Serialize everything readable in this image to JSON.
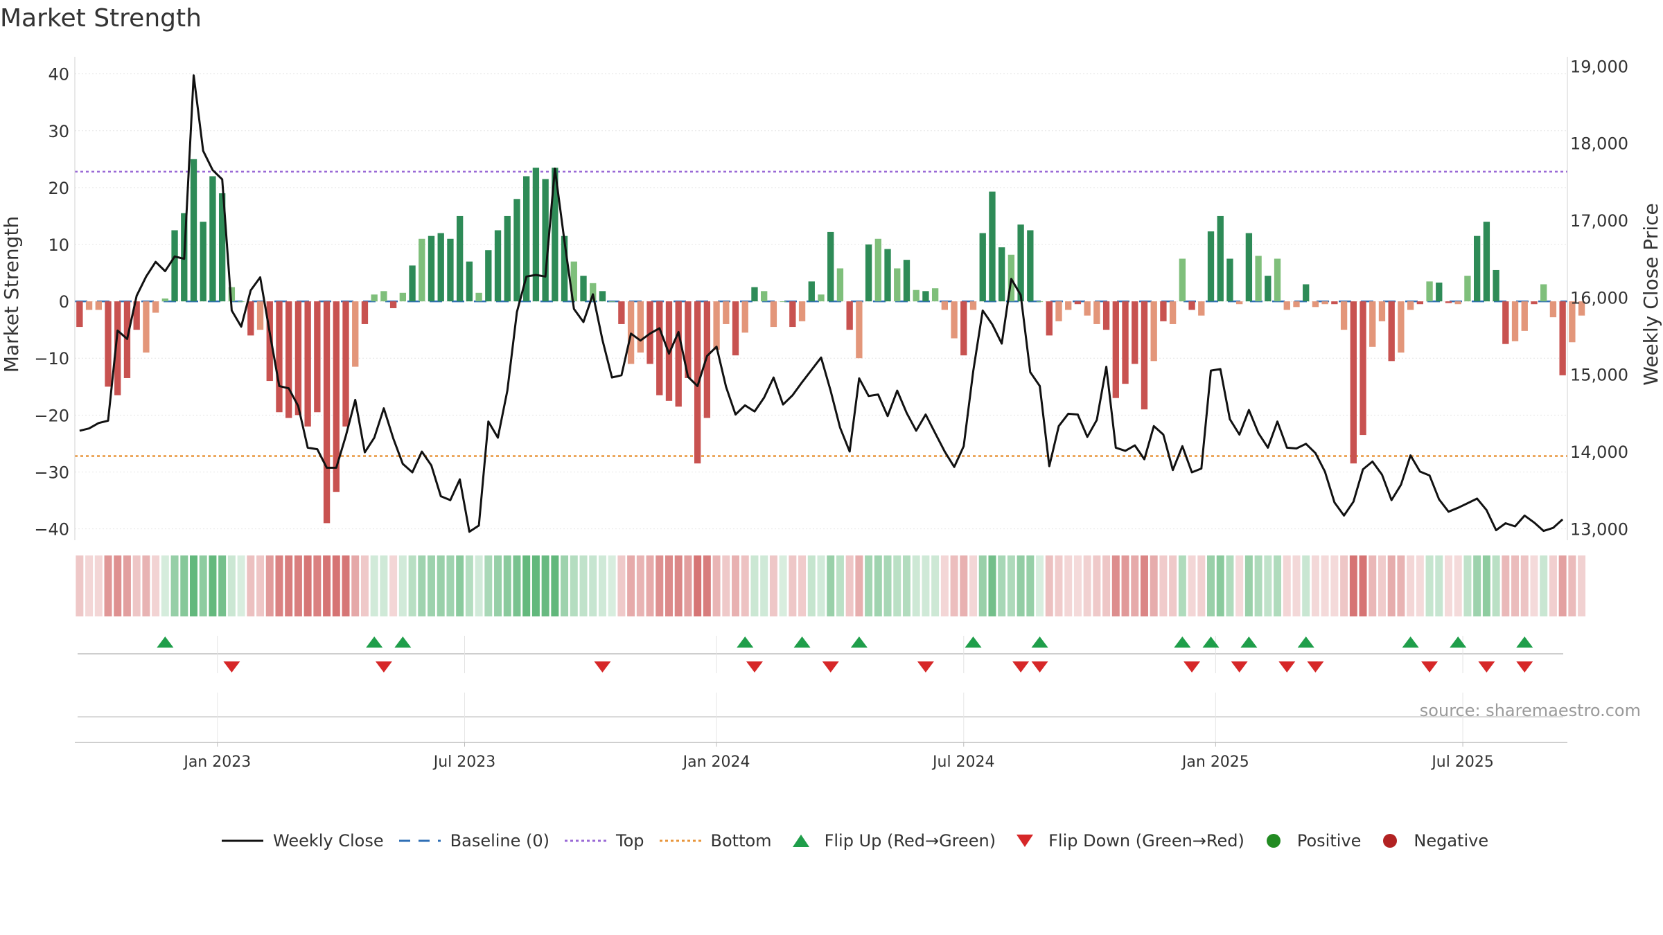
{
  "title": "Market Strength",
  "source": "source: sharemaestro.com",
  "colors": {
    "strong_green": "#2e8b57",
    "light_green": "#7fbf7b",
    "strong_red": "#c85250",
    "light_red": "#e3967a",
    "close_line": "#111111",
    "top_line": "#9a6ad6",
    "bottom_line": "#e8963c",
    "baseline": "#2f6fb5",
    "flip_up": "#1f9e4a",
    "flip_down": "#d62728",
    "positive": "#228b22",
    "negative": "#b22222"
  },
  "chart_data": {
    "type": "bar",
    "title": "Market Strength",
    "ylabel_left": "Market Strength",
    "ylabel_right": "Weekly Close Price",
    "left_ticks": [
      40,
      30,
      20,
      10,
      0,
      -10,
      -20,
      -30,
      -40
    ],
    "left_tick_labels": [
      "40",
      "30",
      "20",
      "10",
      "0",
      "−10",
      "−20",
      "−30",
      "−40"
    ],
    "right_ticks": [
      19000,
      18000,
      17000,
      16000,
      15000,
      14000,
      13000
    ],
    "right_tick_labels": [
      "19,000",
      "18,000",
      "17,000",
      "16,000",
      "15,000",
      "14,000",
      "13,000"
    ],
    "ylim_left": [
      -42,
      43
    ],
    "ylim_right": [
      12850,
      19120
    ],
    "x_ticks": [
      {
        "label": "Jan 2023",
        "week": 15
      },
      {
        "label": "Jul 2023",
        "week": 41
      },
      {
        "label": "Jan 2024",
        "week": 67.5
      },
      {
        "label": "Jul 2024",
        "week": 93.5
      },
      {
        "label": "Jan 2025",
        "week": 120
      },
      {
        "label": "Jul 2025",
        "week": 146
      }
    ],
    "weeks": 157,
    "top": 22.8,
    "bottom": -27.2,
    "strength": [
      -4.5,
      -1.5,
      -1.5,
      -15,
      -16.5,
      -13.5,
      -5,
      -9,
      -2,
      0.5,
      12.5,
      15.5,
      25,
      14,
      22,
      19,
      2.5,
      0,
      -6,
      -5,
      -14,
      -19.5,
      -20.5,
      -20,
      -22,
      -19.5,
      -39,
      -33.5,
      -22,
      -11.5,
      -4,
      1.2,
      1.8,
      -1.2,
      1.5,
      6.3,
      11,
      11.5,
      12,
      11,
      15,
      7,
      1.5,
      9,
      12.5,
      15,
      18,
      22,
      23.5,
      21.5,
      23.5,
      11.5,
      7,
      4.5,
      3.2,
      1.8,
      0,
      -4,
      -11,
      -9,
      -11,
      -16.5,
      -17.5,
      -18.5,
      -13.5,
      -28.5,
      -20.5,
      -8.5,
      -4,
      -9.5,
      -5.5,
      2.5,
      1.8,
      -4.5,
      0,
      -4.5,
      -3.5,
      3.5,
      1.2,
      12.2,
      5.8,
      -5,
      -10,
      10,
      11,
      9.2,
      5.8,
      7.3,
      2,
      1.8,
      2.3,
      -1.5,
      -6.5,
      -9.5,
      -1.5,
      12,
      19.3,
      9.5,
      8.2,
      13.5,
      12.5,
      0,
      -6,
      -3.5,
      -1.5,
      -0.5,
      -2.5,
      -4,
      -5,
      -17,
      -14.5,
      -11,
      -19,
      -10.5,
      -3.5,
      -4,
      7.5,
      -1.5,
      -2.5,
      12.3,
      15,
      7.5,
      -0.5,
      12,
      8,
      4.5,
      7.5,
      -1.5,
      -1,
      3,
      -1,
      -0.5,
      -0.5,
      -5,
      -28.5,
      -23.5,
      -8,
      -3.5,
      -10.5,
      -9,
      -1.5,
      -0.5,
      3.5,
      3.3,
      -0.3,
      -0.5,
      4.5,
      11.5,
      14,
      5.5,
      -7.5,
      -7,
      -5.2,
      -0.5,
      3,
      -2.8,
      -13,
      -7.2,
      -2.5
    ],
    "weekly_close": [
      14270,
      14300,
      14370,
      14400,
      15570,
      15460,
      16020,
      16270,
      16460,
      16340,
      16530,
      16500,
      18880,
      17900,
      17650,
      17530,
      15830,
      15620,
      16090,
      16260,
      15540,
      14850,
      14820,
      14590,
      14050,
      14030,
      13790,
      13790,
      14200,
      14670,
      13990,
      14180,
      14560,
      14170,
      13840,
      13730,
      14000,
      13820,
      13420,
      13370,
      13640,
      12960,
      13040,
      14390,
      14180,
      14790,
      15810,
      16270,
      16290,
      16270,
      17670,
      16730,
      15850,
      15680,
      16040,
      15450,
      14960,
      14990,
      15530,
      15440,
      15530,
      15600,
      15270,
      15550,
      14970,
      14850,
      15240,
      15360,
      14840,
      14480,
      14600,
      14520,
      14700,
      14960,
      14610,
      14730,
      14900,
      15060,
      15220,
      14790,
      14310,
      14000,
      14950,
      14720,
      14740,
      14460,
      14790,
      14500,
      14270,
      14480,
      14240,
      14000,
      13800,
      14070,
      15040,
      15830,
      15650,
      15400,
      16240,
      16030,
      15030,
      14850,
      13810,
      14330,
      14490,
      14480,
      14190,
      14410,
      15100,
      14050,
      14010,
      14080,
      13900,
      14330,
      14220,
      13760,
      14070,
      13730,
      13780,
      15050,
      15070,
      14420,
      14220,
      14540,
      14240,
      14050,
      14390,
      14050,
      14040,
      14100,
      13980,
      13740,
      13340,
      13170,
      13350,
      13770,
      13870,
      13700,
      13370,
      13570,
      13950,
      13740,
      13690,
      13380,
      13220,
      13270,
      13330,
      13390,
      13240,
      12980,
      13070,
      13030,
      13170,
      13080,
      12970,
      13010,
      13120
    ],
    "flips_up": [
      9,
      31,
      34,
      70,
      76,
      82,
      94,
      101,
      116,
      119,
      123,
      129,
      140,
      145,
      152
    ],
    "flips_down": [
      16,
      32,
      55,
      71,
      79,
      89,
      99,
      101,
      117,
      122,
      127,
      130,
      142,
      148,
      152
    ],
    "vlines_weeks": [
      15,
      41,
      67.5,
      93.5,
      120,
      146
    ],
    "legend": [
      "Weekly Close",
      "Baseline (0)",
      "Top",
      "Bottom",
      "Flip Up (Red→Green)",
      "Flip Down (Green→Red)",
      "Positive",
      "Negative"
    ]
  }
}
